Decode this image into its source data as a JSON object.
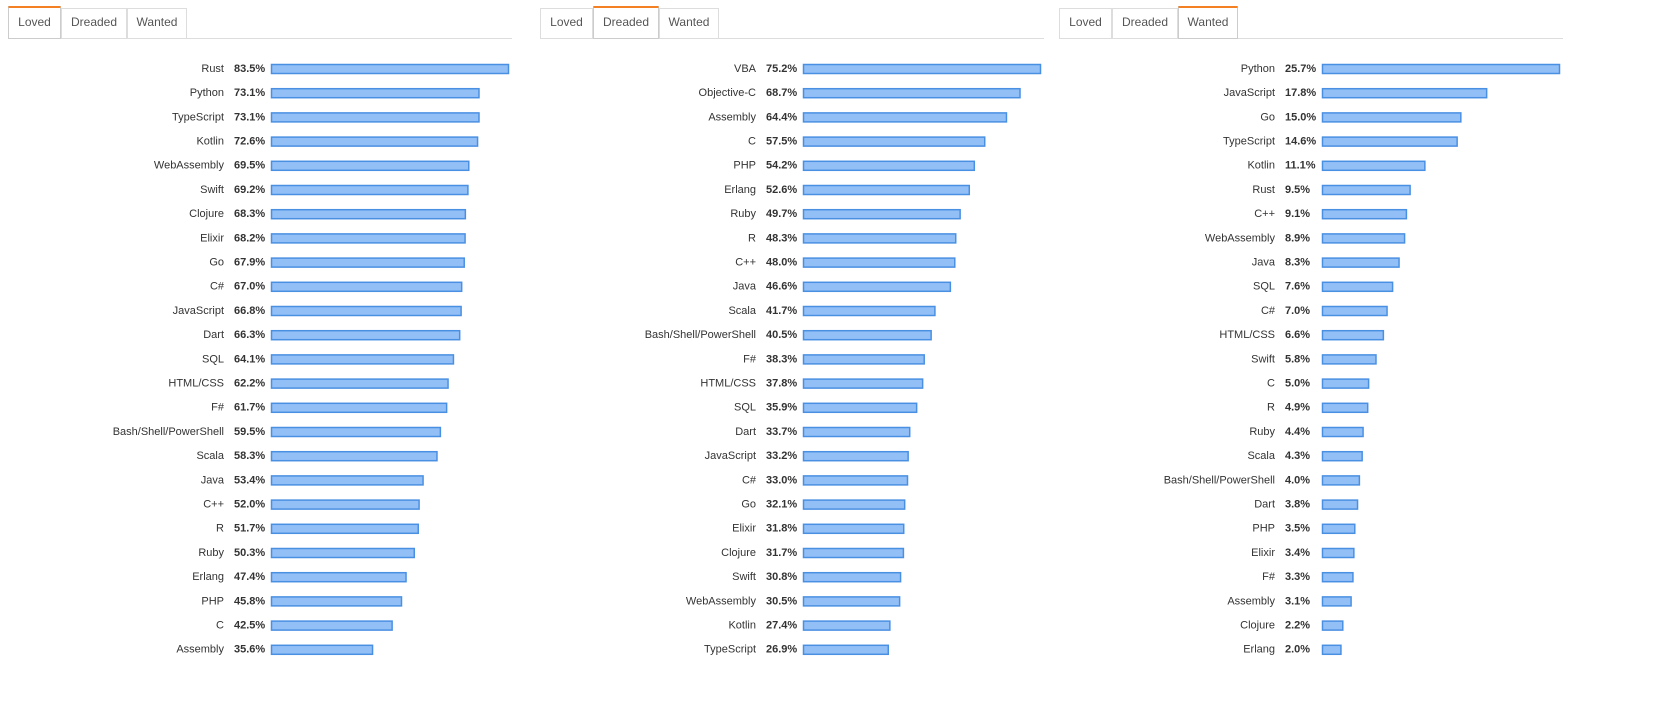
{
  "chart_data": [
    {
      "type": "hbar",
      "tabs": [
        "Loved",
        "Dreaded",
        "Wanted"
      ],
      "active_tab": 0,
      "color": "#93bff7",
      "categories": [
        "Rust",
        "Python",
        "TypeScript",
        "Kotlin",
        "WebAssembly",
        "Swift",
        "Clojure",
        "Elixir",
        "Go",
        "C#",
        "JavaScript",
        "Dart",
        "SQL",
        "HTML/CSS",
        "F#",
        "Bash/Shell/PowerShell",
        "Scala",
        "Java",
        "C++",
        "R",
        "Ruby",
        "Erlang",
        "PHP",
        "C",
        "Assembly"
      ],
      "values": [
        83.5,
        73.1,
        73.1,
        72.6,
        69.5,
        69.2,
        68.3,
        68.2,
        67.9,
        67.0,
        66.8,
        66.3,
        64.1,
        62.2,
        61.7,
        59.5,
        58.3,
        53.4,
        52.0,
        51.7,
        50.3,
        47.4,
        45.8,
        42.5,
        35.6
      ],
      "value_labels": [
        "83.5%",
        "73.1%",
        "73.1%",
        "72.6%",
        "69.5%",
        "69.2%",
        "68.3%",
        "68.2%",
        "67.9%",
        "67.0%",
        "66.8%",
        "66.3%",
        "64.1%",
        "62.2%",
        "61.7%",
        "59.5%",
        "58.3%",
        "53.4%",
        "52.0%",
        "51.7%",
        "50.3%",
        "47.4%",
        "45.8%",
        "42.5%",
        "35.6%"
      ]
    },
    {
      "type": "hbar",
      "tabs": [
        "Loved",
        "Dreaded",
        "Wanted"
      ],
      "active_tab": 1,
      "color": "#93bff7",
      "categories": [
        "VBA",
        "Objective-C",
        "Assembly",
        "C",
        "PHP",
        "Erlang",
        "Ruby",
        "R",
        "C++",
        "Java",
        "Scala",
        "Bash/Shell/PowerShell",
        "F#",
        "HTML/CSS",
        "SQL",
        "Dart",
        "JavaScript",
        "C#",
        "Go",
        "Elixir",
        "Clojure",
        "Swift",
        "WebAssembly",
        "Kotlin",
        "TypeScript"
      ],
      "values": [
        75.2,
        68.7,
        64.4,
        57.5,
        54.2,
        52.6,
        49.7,
        48.3,
        48.0,
        46.6,
        41.7,
        40.5,
        38.3,
        37.8,
        35.9,
        33.7,
        33.2,
        33.0,
        32.1,
        31.8,
        31.7,
        30.8,
        30.5,
        27.4,
        26.9
      ],
      "value_labels": [
        "75.2%",
        "68.7%",
        "64.4%",
        "57.5%",
        "54.2%",
        "52.6%",
        "49.7%",
        "48.3%",
        "48.0%",
        "46.6%",
        "41.7%",
        "40.5%",
        "38.3%",
        "37.8%",
        "35.9%",
        "33.7%",
        "33.2%",
        "33.0%",
        "32.1%",
        "31.8%",
        "31.7%",
        "30.8%",
        "30.5%",
        "27.4%",
        "26.9%"
      ]
    },
    {
      "type": "hbar",
      "tabs": [
        "Loved",
        "Dreaded",
        "Wanted"
      ],
      "active_tab": 2,
      "color": "#93bff7",
      "categories": [
        "Python",
        "JavaScript",
        "Go",
        "TypeScript",
        "Kotlin",
        "Rust",
        "C++",
        "WebAssembly",
        "Java",
        "SQL",
        "C#",
        "HTML/CSS",
        "Swift",
        "C",
        "R",
        "Ruby",
        "Scala",
        "Bash/Shell/PowerShell",
        "Dart",
        "PHP",
        "Elixir",
        "F#",
        "Assembly",
        "Clojure",
        "Erlang"
      ],
      "values": [
        25.7,
        17.8,
        15.0,
        14.6,
        11.1,
        9.5,
        9.1,
        8.9,
        8.3,
        7.6,
        7.0,
        6.6,
        5.8,
        5.0,
        4.9,
        4.4,
        4.3,
        4.0,
        3.8,
        3.5,
        3.4,
        3.3,
        3.1,
        2.2,
        2.0
      ],
      "value_labels": [
        "25.7%",
        "17.8%",
        "15.0%",
        "14.6%",
        "11.1%",
        "9.5%",
        "9.1%",
        "8.9%",
        "8.3%",
        "7.6%",
        "7.0%",
        "6.6%",
        "5.8%",
        "5.0%",
        "4.9%",
        "4.4%",
        "4.3%",
        "4.0%",
        "3.8%",
        "3.5%",
        "3.4%",
        "3.3%",
        "3.1%",
        "2.2%",
        "2.0%"
      ]
    }
  ]
}
